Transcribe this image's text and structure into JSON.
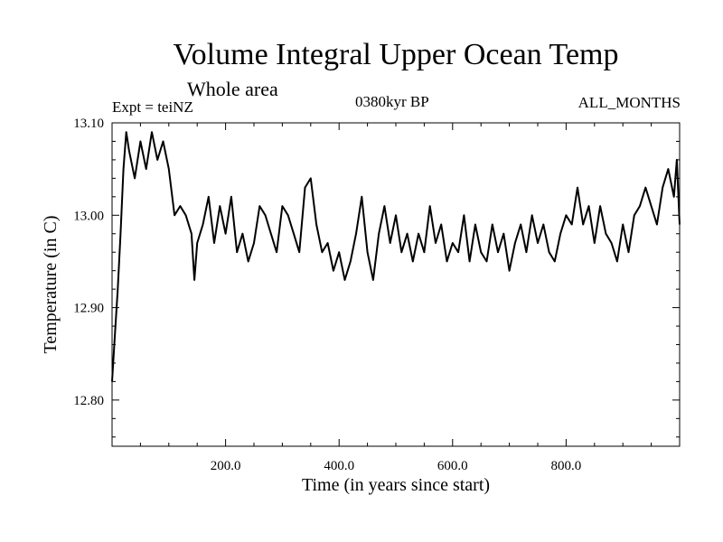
{
  "chart_data": {
    "type": "line",
    "title": "Volume Integral Upper Ocean Temp",
    "subtitle": "Whole area",
    "annotations": {
      "experiment": "Expt = teiNZ",
      "period": "0380kyr BP",
      "months": "ALL_MONTHS"
    },
    "xlabel": "Time (in years since start)",
    "ylabel": "Temperature (in C)",
    "xlim": [
      0,
      1000
    ],
    "ylim": [
      12.75,
      13.1
    ],
    "x_ticks": [
      200,
      400,
      600,
      800
    ],
    "x_tick_labels": [
      "200.0",
      "400.0",
      "600.0",
      "800.0"
    ],
    "y_ticks": [
      12.8,
      12.9,
      13.0,
      13.1
    ],
    "y_tick_labels": [
      "12.80",
      "12.90",
      "13.00",
      "13.10"
    ],
    "series": [
      {
        "name": "teiNZ",
        "x": [
          0,
          5,
          10,
          15,
          20,
          25,
          30,
          40,
          50,
          60,
          70,
          80,
          90,
          100,
          110,
          120,
          130,
          140,
          145,
          150,
          160,
          170,
          180,
          190,
          200,
          210,
          220,
          230,
          240,
          250,
          260,
          270,
          280,
          290,
          300,
          310,
          320,
          330,
          340,
          350,
          360,
          370,
          380,
          390,
          400,
          410,
          420,
          430,
          440,
          450,
          460,
          470,
          480,
          490,
          500,
          510,
          520,
          530,
          540,
          550,
          560,
          570,
          580,
          590,
          600,
          610,
          620,
          630,
          640,
          650,
          660,
          670,
          680,
          690,
          700,
          710,
          720,
          730,
          740,
          750,
          760,
          770,
          780,
          790,
          800,
          810,
          820,
          830,
          840,
          850,
          860,
          870,
          880,
          890,
          900,
          910,
          920,
          930,
          940,
          950,
          960,
          970,
          980,
          990,
          995,
          1000
        ],
        "values": [
          12.82,
          12.87,
          12.92,
          12.98,
          13.05,
          13.09,
          13.07,
          13.04,
          13.08,
          13.05,
          13.09,
          13.06,
          13.08,
          13.05,
          13.0,
          13.01,
          13.0,
          12.98,
          12.93,
          12.97,
          12.99,
          13.02,
          12.97,
          13.01,
          12.98,
          13.02,
          12.96,
          12.98,
          12.95,
          12.97,
          13.01,
          13.0,
          12.98,
          12.96,
          13.01,
          13.0,
          12.98,
          12.96,
          13.03,
          13.04,
          12.99,
          12.96,
          12.97,
          12.94,
          12.96,
          12.93,
          12.95,
          12.98,
          13.02,
          12.96,
          12.93,
          12.98,
          13.01,
          12.97,
          13.0,
          12.96,
          12.98,
          12.95,
          12.98,
          12.96,
          13.01,
          12.97,
          12.99,
          12.95,
          12.97,
          12.96,
          13.0,
          12.95,
          12.99,
          12.96,
          12.95,
          12.99,
          12.96,
          12.98,
          12.94,
          12.97,
          12.99,
          12.96,
          13.0,
          12.97,
          12.99,
          12.96,
          12.95,
          12.98,
          13.0,
          12.99,
          13.03,
          12.99,
          13.01,
          12.97,
          13.01,
          12.98,
          12.97,
          12.95,
          12.99,
          12.96,
          13.0,
          13.01,
          13.03,
          13.01,
          12.99,
          13.03,
          13.05,
          13.02,
          13.06,
          12.99
        ]
      }
    ]
  }
}
